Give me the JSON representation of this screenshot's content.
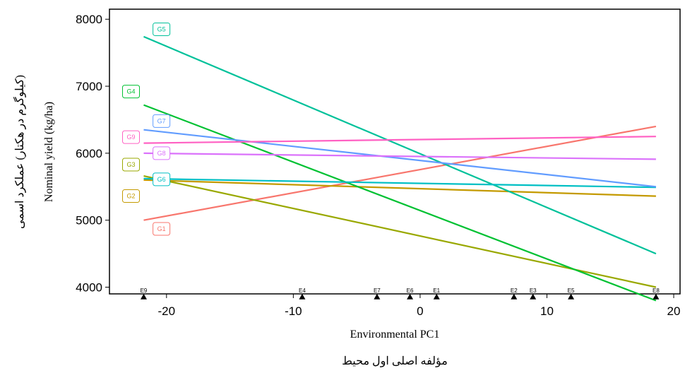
{
  "chart_data": {
    "type": "line",
    "title": "",
    "xlabel": "Environmental PC1",
    "xlabel_alt": "مؤلفه اصلی اول محیط",
    "ylabel": "Nominal yield (kg/ha)",
    "ylabel_alt": "(کیلوگرم در هکتار) عملکرد اسمی",
    "xlim": [
      -24.5,
      20.5
    ],
    "ylim": [
      3900,
      8150
    ],
    "x_ticks": [
      -20,
      -10,
      0,
      10,
      20
    ],
    "x_tick_labels": [
      "-20",
      "-10",
      "0",
      "10",
      "20"
    ],
    "y_ticks": [
      4000,
      5000,
      6000,
      7000,
      8000
    ],
    "y_tick_labels": [
      "4000",
      "5000",
      "6000",
      "7000",
      "8000"
    ],
    "grid": false,
    "legend": "none",
    "series": [
      {
        "name": "G1",
        "color": "#F8766D",
        "x": [
          -21.8,
          18.6
        ],
        "y": [
          5000,
          6400
        ]
      },
      {
        "name": "G2",
        "color": "#C49A00",
        "x": [
          -21.8,
          18.6
        ],
        "y": [
          5600,
          5360
        ]
      },
      {
        "name": "G3",
        "color": "#99A800",
        "x": [
          -21.8,
          18.6
        ],
        "y": [
          5660,
          4000
        ]
      },
      {
        "name": "G4",
        "color": "#00C132",
        "x": [
          -21.8,
          18.6
        ],
        "y": [
          6720,
          3800
        ]
      },
      {
        "name": "G5",
        "color": "#00C19A",
        "x": [
          -21.8,
          18.6
        ],
        "y": [
          7740,
          4500
        ]
      },
      {
        "name": "G6",
        "color": "#00BFC4",
        "x": [
          -21.8,
          18.6
        ],
        "y": [
          5620,
          5490
        ]
      },
      {
        "name": "G7",
        "color": "#619CFF",
        "x": [
          -21.8,
          18.6
        ],
        "y": [
          6350,
          5500
        ]
      },
      {
        "name": "G8",
        "color": "#DB72FB",
        "x": [
          -21.8,
          18.6
        ],
        "y": [
          6000,
          5910
        ]
      },
      {
        "name": "G9",
        "color": "#FF61C3",
        "x": [
          -21.8,
          18.6
        ],
        "y": [
          6150,
          6250
        ]
      }
    ],
    "series_labels": [
      {
        "name": "G1",
        "x": -20.4,
        "y": 4870
      },
      {
        "name": "G2",
        "x": -22.8,
        "y": 5360
      },
      {
        "name": "G3",
        "x": -22.8,
        "y": 5830
      },
      {
        "name": "G4",
        "x": -22.8,
        "y": 6920
      },
      {
        "name": "G5",
        "x": -20.4,
        "y": 7850
      },
      {
        "name": "G6",
        "x": -20.4,
        "y": 5610
      },
      {
        "name": "G7",
        "x": -20.4,
        "y": 6480
      },
      {
        "name": "G8",
        "x": -20.4,
        "y": 6000
      },
      {
        "name": "G9",
        "x": -22.8,
        "y": 6240
      }
    ],
    "environments": [
      {
        "name": "E9",
        "x": -21.8
      },
      {
        "name": "E4",
        "x": -9.3
      },
      {
        "name": "E7",
        "x": -3.4
      },
      {
        "name": "E6",
        "x": -0.8
      },
      {
        "name": "E1",
        "x": 1.3
      },
      {
        "name": "E2",
        "x": 7.4
      },
      {
        "name": "E3",
        "x": 8.9
      },
      {
        "name": "E5",
        "x": 11.9
      },
      {
        "name": "E8",
        "x": 18.6
      }
    ],
    "environment_marker_y": 3860
  }
}
